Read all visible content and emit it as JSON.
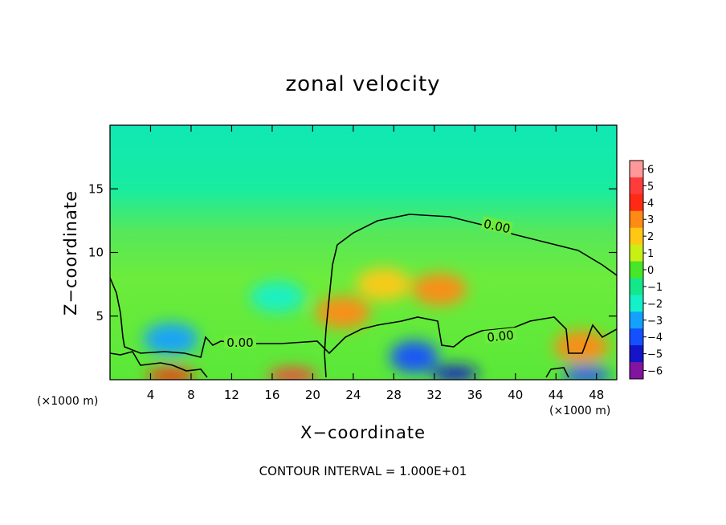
{
  "chart_data": {
    "type": "heatmap",
    "title": "zonal velocity",
    "xlabel": "X−coordinate",
    "ylabel": "Z−coordinate",
    "x_unit_left": "(×1000 m)",
    "x_unit_right": "(×1000 m)",
    "xlim": [
      0,
      50
    ],
    "ylim": [
      0,
      20
    ],
    "xticks": [
      4,
      8,
      12,
      16,
      20,
      24,
      28,
      32,
      36,
      40,
      44,
      48
    ],
    "yticks": [
      5,
      10,
      15
    ],
    "colorbar": {
      "ticks": [
        "6",
        "5",
        "4",
        "3",
        "2",
        "1",
        "0",
        "−1",
        "−2",
        "−3",
        "−4",
        "−5",
        "−6"
      ],
      "range": [
        -6,
        6
      ]
    },
    "contour_level_label": "0.00",
    "contour_interval_text": "CONTOUR INTERVAL = 1.000E+01",
    "features": [
      {
        "x": 6.0,
        "z": 3.2,
        "value": -2.6
      },
      {
        "x": 16.5,
        "z": 6.5,
        "value": -2.2
      },
      {
        "x": 32.5,
        "z": 7.1,
        "value": 3.4
      },
      {
        "x": 23.0,
        "z": 5.3,
        "value": 3.0
      },
      {
        "x": 27.0,
        "z": 7.5,
        "value": 2.0
      },
      {
        "x": 30.0,
        "z": 1.8,
        "value": -3.8
      },
      {
        "x": 18.0,
        "z": 0.3,
        "value": 4.5
      },
      {
        "x": 6.0,
        "z": 0.3,
        "value": 4.0
      },
      {
        "x": 34.0,
        "z": 0.5,
        "value": -5.0
      },
      {
        "x": 47.0,
        "z": 0.4,
        "value": -4.0
      },
      {
        "x": 46.5,
        "z": 2.6,
        "value": 2.5
      }
    ]
  }
}
